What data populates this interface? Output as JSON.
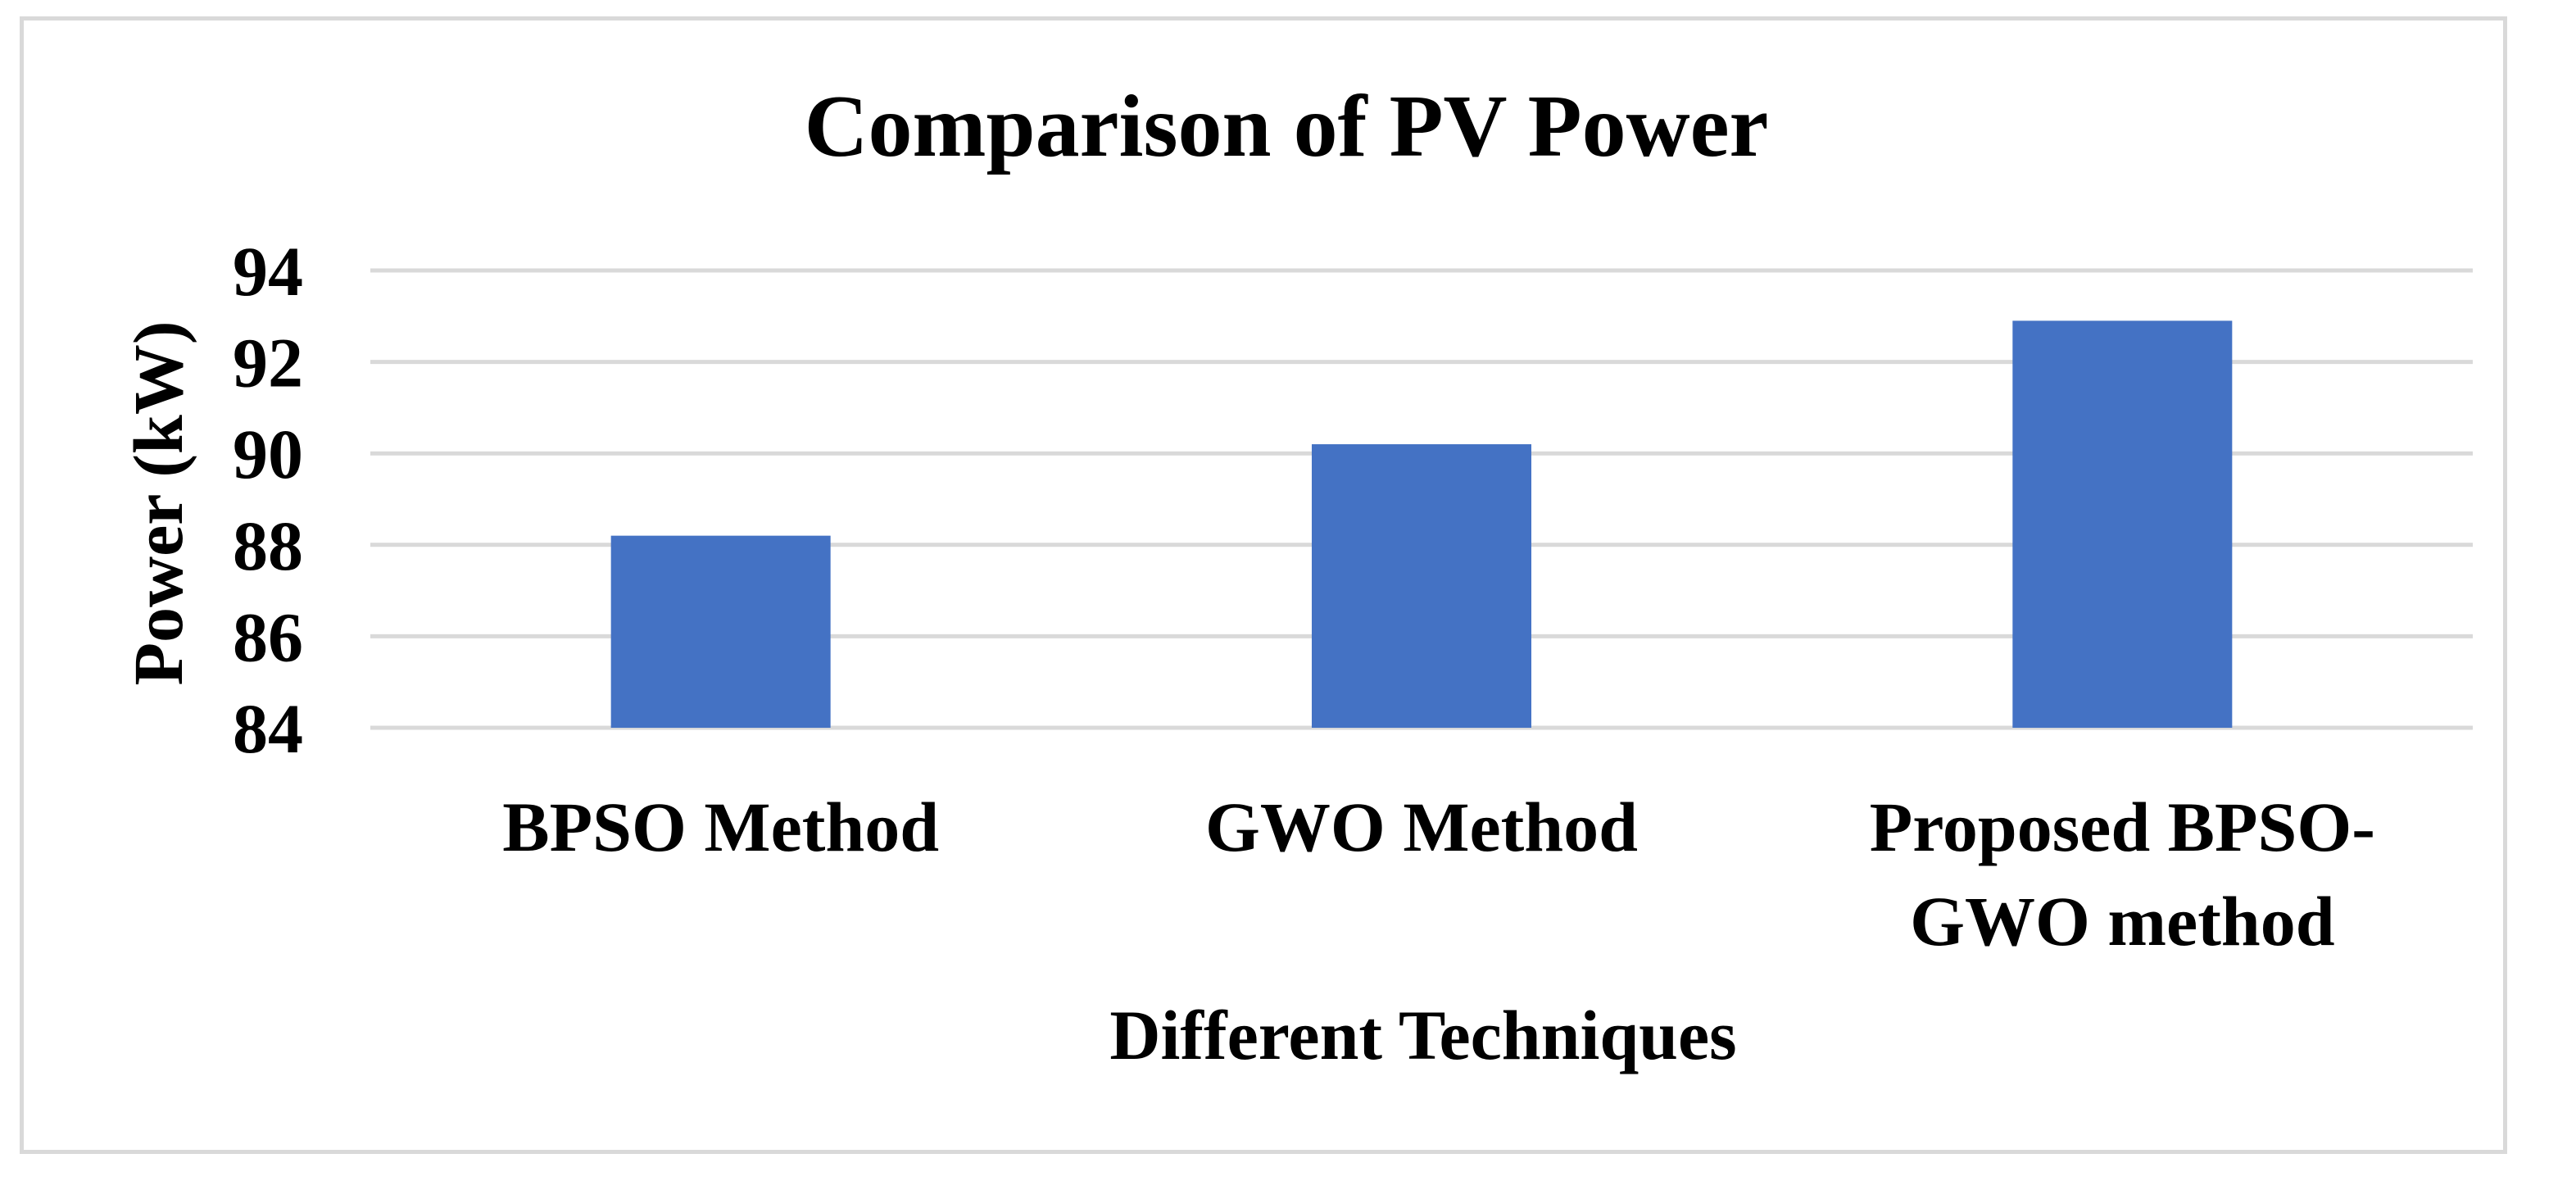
{
  "chart_data": {
    "type": "bar",
    "title": "Comparison of PV Power",
    "xlabel": "Different Techniques",
    "ylabel": "Power (kW)",
    "categories": [
      [
        "BPSO Method"
      ],
      [
        "GWO Method"
      ],
      [
        "Proposed BPSO-",
        "GWO method"
      ]
    ],
    "values": [
      88.2,
      90.2,
      92.9
    ],
    "ylim": [
      84,
      94
    ],
    "yticks": [
      84,
      86,
      88,
      90,
      92,
      94
    ],
    "ytick_labels": [
      "84",
      "86",
      "88",
      "90",
      "92",
      "94"
    ],
    "grid": true,
    "legend": "none",
    "colors": {
      "bar": "#4472C4",
      "grid": "#d9d9d9",
      "text": "#000000",
      "border": "#d9d9d9"
    }
  }
}
